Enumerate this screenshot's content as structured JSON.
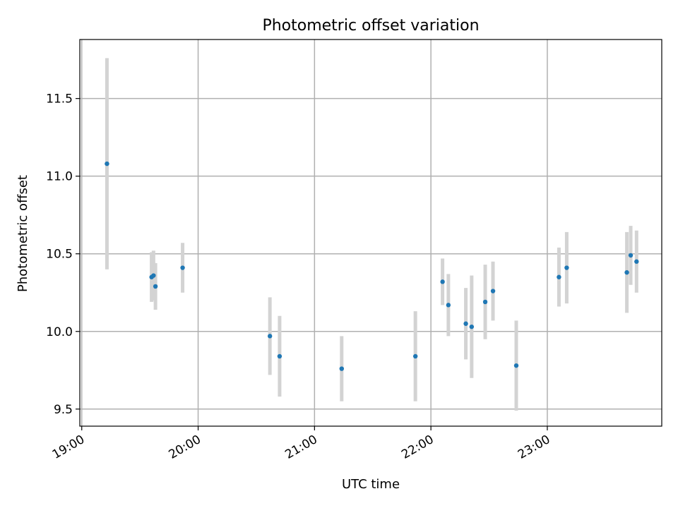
{
  "chart_data": {
    "type": "scatter",
    "title": "Photometric offset variation",
    "xlabel": "UTC time",
    "ylabel": "Photometric offset",
    "x_ticks": [
      "19:00",
      "20:00",
      "21:00",
      "22:00",
      "23:00"
    ],
    "y_ticks": [
      "9.5",
      "10.0",
      "10.5",
      "11.0",
      "11.5"
    ],
    "xlim": [
      "18:59",
      "23:59"
    ],
    "ylim": [
      9.39,
      11.88
    ],
    "grid": true,
    "colors": {
      "point": "#1f77b4",
      "errorbar": "#d3d3d3",
      "grid": "#b0b0b0"
    },
    "points": [
      {
        "x": "19:13",
        "y": 11.08,
        "err": 0.68
      },
      {
        "x": "19:36",
        "y": 10.35,
        "err": 0.16
      },
      {
        "x": "19:37",
        "y": 10.36,
        "err": 0.16
      },
      {
        "x": "19:38",
        "y": 10.29,
        "err": 0.15
      },
      {
        "x": "19:52",
        "y": 10.41,
        "err": 0.16
      },
      {
        "x": "20:37",
        "y": 9.97,
        "err": 0.25
      },
      {
        "x": "20:42",
        "y": 9.84,
        "err": 0.26
      },
      {
        "x": "21:14",
        "y": 9.76,
        "err": 0.21
      },
      {
        "x": "21:52",
        "y": 9.84,
        "err": 0.29
      },
      {
        "x": "22:06",
        "y": 10.32,
        "err": 0.15
      },
      {
        "x": "22:09",
        "y": 10.17,
        "err": 0.2
      },
      {
        "x": "22:18",
        "y": 10.05,
        "err": 0.23
      },
      {
        "x": "22:21",
        "y": 10.03,
        "err": 0.33
      },
      {
        "x": "22:28",
        "y": 10.19,
        "err": 0.24
      },
      {
        "x": "22:32",
        "y": 10.26,
        "err": 0.19
      },
      {
        "x": "22:44",
        "y": 9.78,
        "err": 0.29
      },
      {
        "x": "23:06",
        "y": 10.35,
        "err": 0.19
      },
      {
        "x": "23:10",
        "y": 10.41,
        "err": 0.23
      },
      {
        "x": "23:41",
        "y": 10.38,
        "err": 0.26
      },
      {
        "x": "23:43",
        "y": 10.49,
        "err": 0.19
      },
      {
        "x": "23:46",
        "y": 10.45,
        "err": 0.2
      }
    ]
  }
}
